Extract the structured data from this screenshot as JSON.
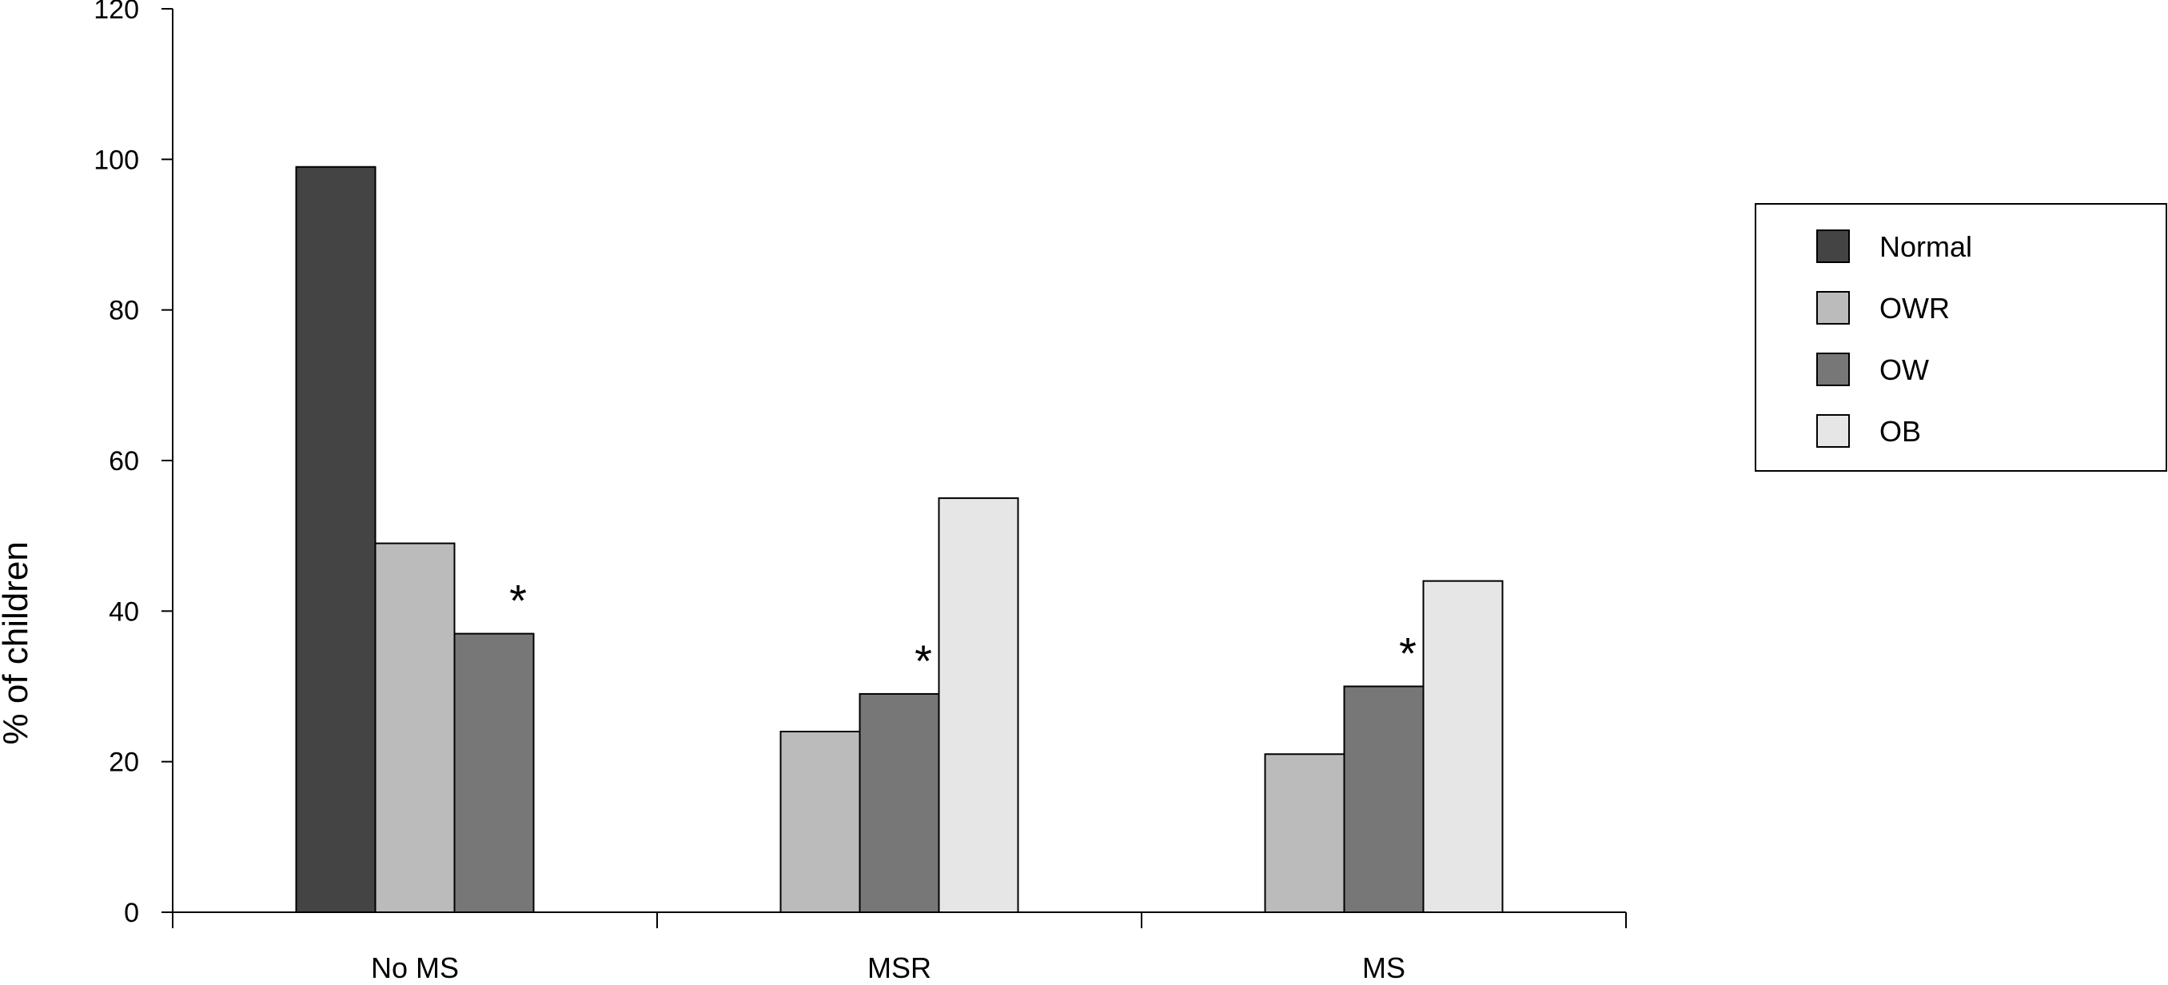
{
  "chart_data": {
    "type": "bar",
    "ylabel": "% of children",
    "xlabel": "",
    "ylim": [
      0,
      120
    ],
    "yticks": [
      0,
      20,
      40,
      60,
      80,
      100,
      120
    ],
    "categories": [
      "No MS",
      "MSR",
      "MS"
    ],
    "series": [
      {
        "name": "Normal",
        "color": "#444444",
        "values": [
          99,
          null,
          null
        ]
      },
      {
        "name": "OWR",
        "color": "#bbbbbb",
        "values": [
          49,
          24,
          21
        ]
      },
      {
        "name": "OW",
        "color": "#777777",
        "values": [
          37,
          29,
          30
        ]
      },
      {
        "name": "OB",
        "color": "#e6e6e6",
        "values": [
          null,
          55,
          44
        ]
      }
    ],
    "annotations": [
      {
        "category": "No MS",
        "series": "OW",
        "text": "*"
      },
      {
        "category": "MSR",
        "series": "OW",
        "text": "*"
      },
      {
        "category": "MS",
        "series": "OW",
        "text": "*"
      }
    ],
    "legend_position": "right",
    "grid": false
  }
}
